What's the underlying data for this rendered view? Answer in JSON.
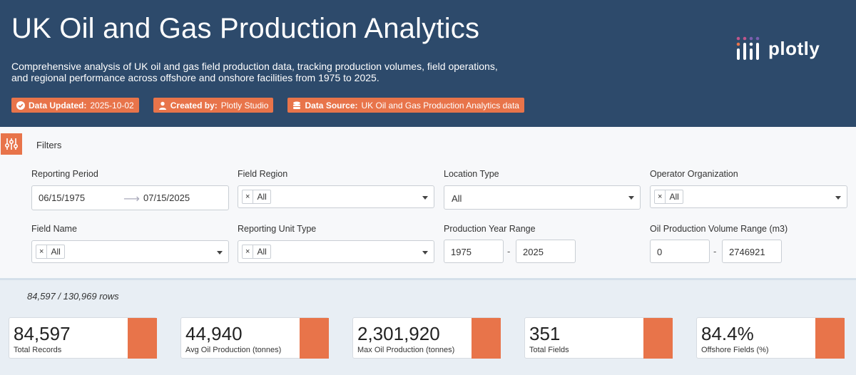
{
  "header": {
    "title": "UK Oil and Gas Production Analytics",
    "description": "Comprehensive analysis of UK oil and gas field production data, tracking production volumes, field operations, and regional performance across offshore and onshore facilities from 1975 to 2025.",
    "badges": [
      {
        "key": "Data Updated:",
        "value": "2025-10-02",
        "icon": "check-circle-icon"
      },
      {
        "key": "Created by:",
        "value": "Plotly Studio",
        "icon": "user-icon"
      },
      {
        "key": "Data Source:",
        "value": "UK Oil and Gas Production Analytics data",
        "icon": "database-icon"
      }
    ],
    "logo_text": "plotly"
  },
  "colors": {
    "header_bg": "#2d4a6b",
    "accent": "#e8744a",
    "page_bg": "#e8eef4"
  },
  "filters": {
    "title": "Filters",
    "reporting_period": {
      "label": "Reporting Period",
      "start": "06/15/1975",
      "end": "07/15/2025"
    },
    "field_region": {
      "label": "Field Region",
      "tag": "All"
    },
    "location_type": {
      "label": "Location Type",
      "value": "All"
    },
    "operator_organization": {
      "label": "Operator Organization",
      "tag": "All"
    },
    "field_name": {
      "label": "Field Name",
      "tag": "All"
    },
    "reporting_unit_type": {
      "label": "Reporting Unit Type",
      "tag": "All"
    },
    "production_year_range": {
      "label": "Production Year Range",
      "min": "1975",
      "max": "2025"
    },
    "oil_volume_range": {
      "label": "Oil Production Volume Range (m3)",
      "min": "0",
      "max": "2746921"
    },
    "tag_remove": "×",
    "range_sep": "-"
  },
  "row_count": "84,597 / 130,969 rows",
  "kpis": [
    {
      "value": "84,597",
      "label": "Total Records"
    },
    {
      "value": "44,940",
      "label": "Avg Oil Production (tonnes)"
    },
    {
      "value": "2,301,920",
      "label": "Max Oil Production (tonnes)"
    },
    {
      "value": "351",
      "label": "Total Fields"
    },
    {
      "value": "84.4%",
      "label": "Offshore Fields (%)"
    }
  ]
}
